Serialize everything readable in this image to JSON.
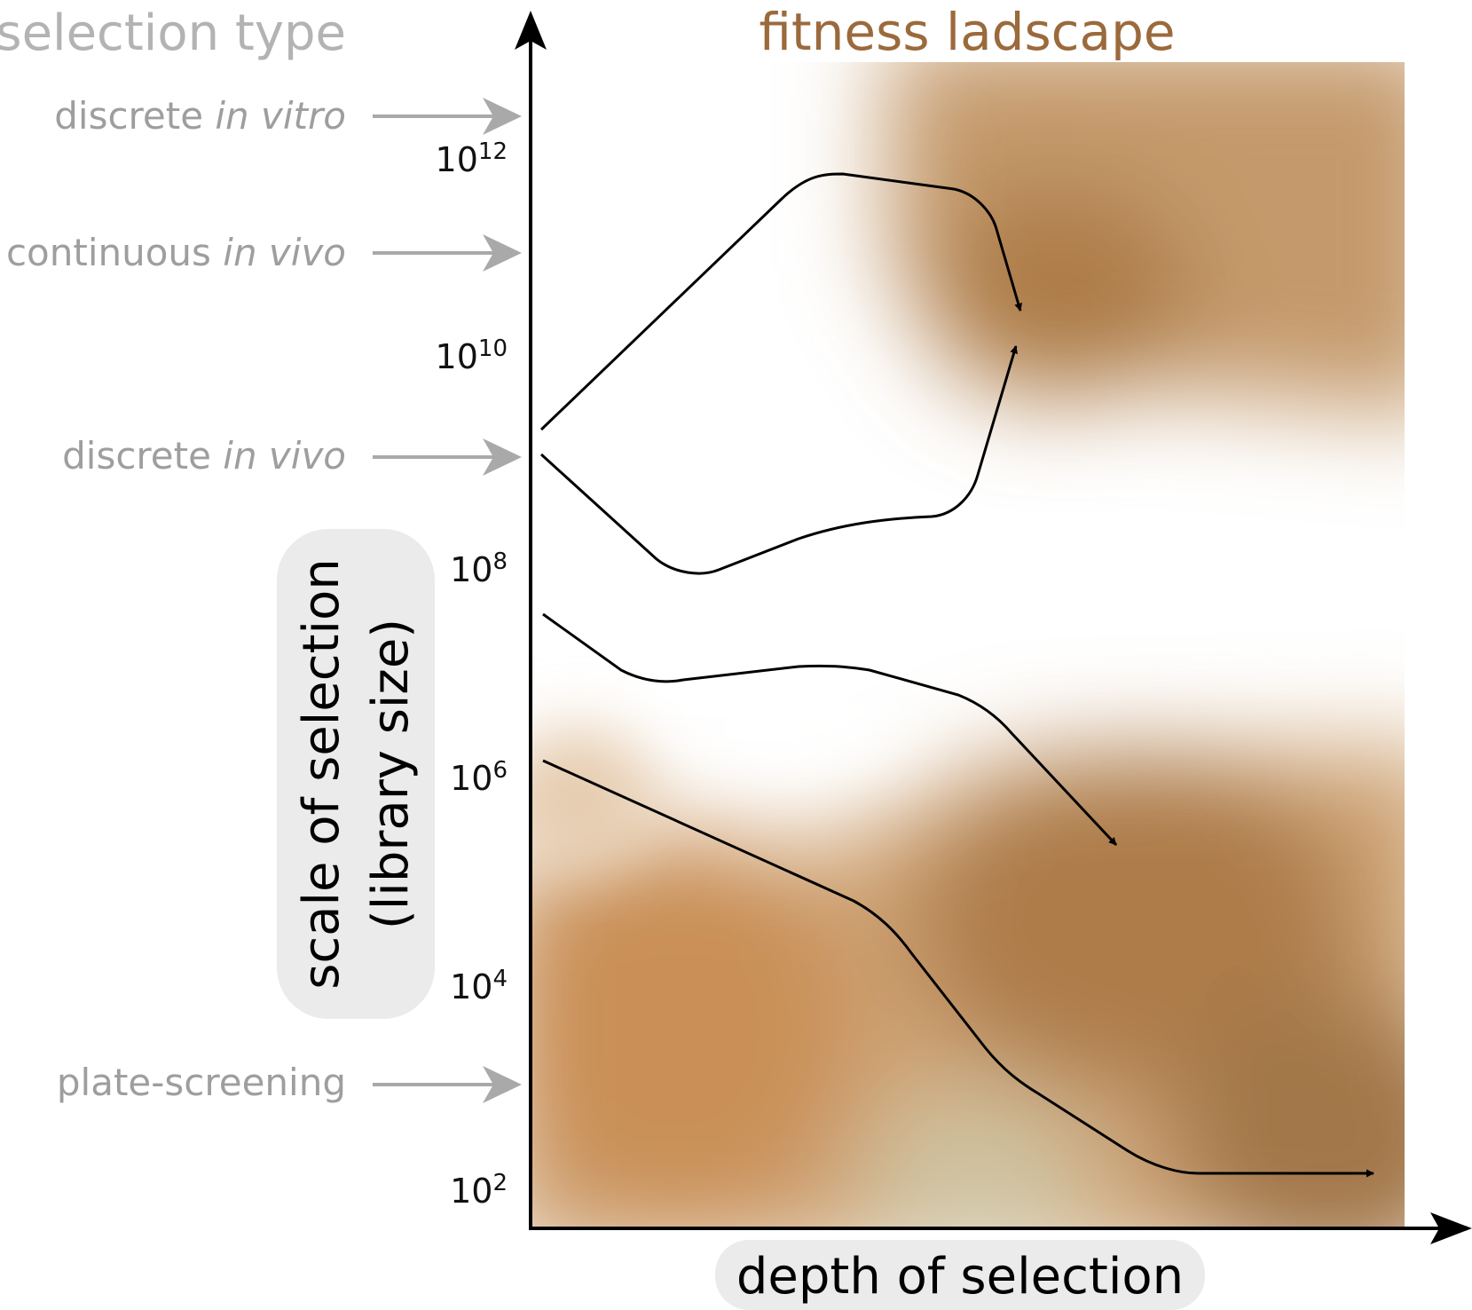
{
  "selection_type": {
    "title": "selection type",
    "labels": [
      {
        "plain": "discrete ",
        "italic": "in vitro"
      },
      {
        "plain": "continuous ",
        "italic": "in vivo"
      },
      {
        "plain": "discrete ",
        "italic": "in vivo"
      },
      {
        "plain": "plate-screening",
        "italic": ""
      }
    ]
  },
  "landscape": {
    "title": "fitness ladscape"
  },
  "y_axis": {
    "label_line1": "scale of selection",
    "label_line2": "(library size)",
    "ticks": [
      {
        "base": "10",
        "exp": "12"
      },
      {
        "base": "10",
        "exp": "10"
      },
      {
        "base": "10",
        "exp": "8"
      },
      {
        "base": "10",
        "exp": "6"
      },
      {
        "base": "10",
        "exp": "4"
      },
      {
        "base": "10",
        "exp": "2"
      }
    ]
  },
  "x_axis": {
    "label": "depth of selection"
  },
  "colors": {
    "landscape_dark": "#a97a48",
    "landscape_orange": "#c98f57",
    "landscape_pale": "#cfc3a1",
    "selection_text": "#9e9e9e",
    "title_brown": "#9b6a3c",
    "pill_bg": "#ebebeb"
  }
}
